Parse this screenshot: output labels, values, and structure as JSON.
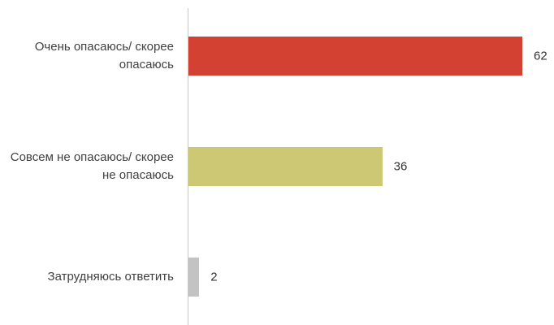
{
  "chart_data": {
    "type": "bar",
    "orientation": "horizontal",
    "categories": [
      "Очень опасаюсь/ скорее опасаюсь",
      "Совсем не опасаюсь/ скорее не опасаюсь",
      "Затрудняюсь ответить"
    ],
    "values": [
      62,
      36,
      2
    ],
    "colors": [
      "#d24131",
      "#cdc874",
      "#c3c3c3"
    ]
  }
}
